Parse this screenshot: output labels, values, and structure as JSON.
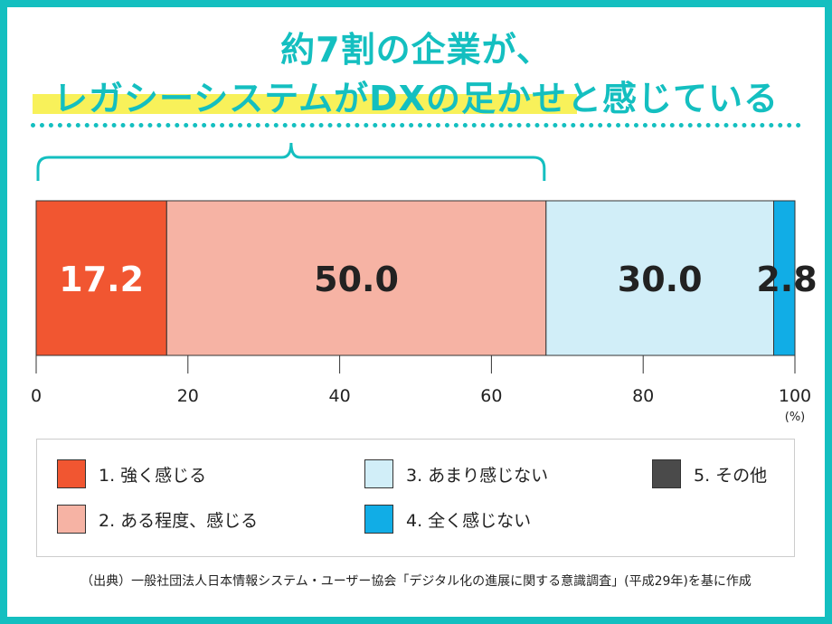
{
  "title": {
    "line1": "約7割の企業が、",
    "line2": "レガシーシステムがDXの足かせと感じている"
  },
  "chart_data": {
    "type": "bar",
    "orientation": "horizontal-stacked",
    "series": [
      {
        "name": "1. 強く感じる",
        "value": 17.2,
        "color": "#f15631",
        "label_color": "#ffffff"
      },
      {
        "name": "2. ある程度、感じる",
        "value": 50.0,
        "color": "#f6b3a4",
        "label_color": "#222222"
      },
      {
        "name": "3. あまり感じない",
        "value": 30.0,
        "color": "#d1eef8",
        "label_color": "#222222"
      },
      {
        "name": "4. 全く感じない",
        "value": 2.8,
        "color": "#11ade6",
        "label_color": "#222222"
      },
      {
        "name": "5. その他",
        "value": 0,
        "color": "#4a4a4a"
      }
    ],
    "xlim": [
      0,
      100
    ],
    "xticks": [
      0,
      20,
      40,
      60,
      80,
      100
    ],
    "xunit": "(%)",
    "legend": "bottom",
    "grid": false
  },
  "source": "（出典）一般社団法人日本情報システム・ユーザー協会「デジタル化の進展に関する意識調査」(平成29年)を基に作成"
}
